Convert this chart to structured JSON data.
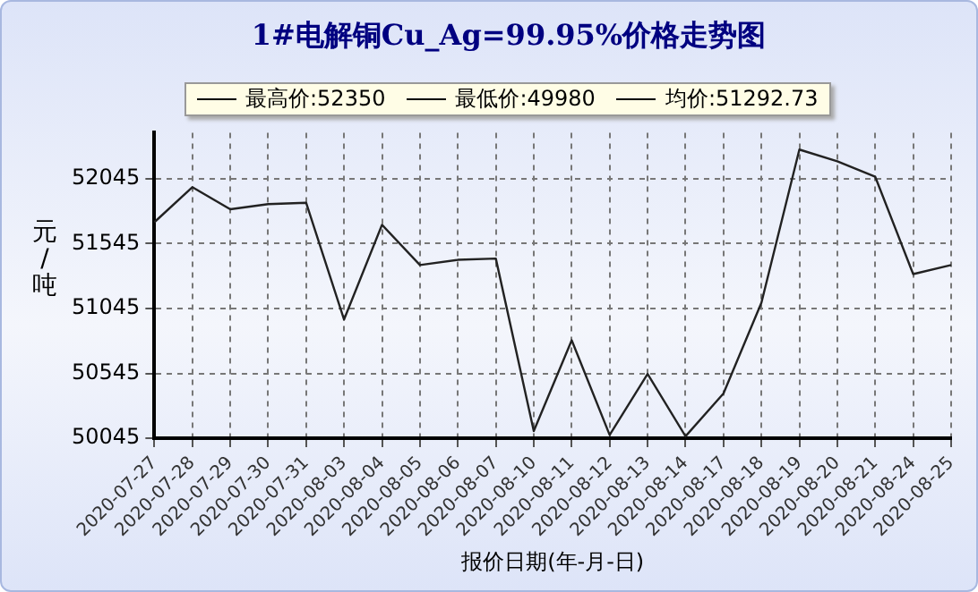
{
  "chart_data": {
    "type": "line",
    "title": "1#电解铜Cu_Ag=99.95%价格走势图",
    "xlabel": "报价日期(年-月-日)",
    "ylabel": "元/吨",
    "annotations": [
      "最高价:52350",
      "最低价:49980",
      "均价:51292.73"
    ],
    "categories": [
      "2020-07-27",
      "2020-07-28",
      "2020-07-29",
      "2020-07-30",
      "2020-07-31",
      "2020-08-03",
      "2020-08-04",
      "2020-08-05",
      "2020-08-06",
      "2020-08-07",
      "2020-08-10",
      "2020-08-11",
      "2020-08-12",
      "2020-08-13",
      "2020-08-14",
      "2020-08-17",
      "2020-08-18",
      "2020-08-19",
      "2020-08-20",
      "2020-08-21",
      "2020-08-24",
      "2020-08-25"
    ],
    "series": [
      {
        "color": "#222222",
        "values": [
          51710,
          51980,
          51810,
          51850,
          51860,
          50960,
          51690,
          51380,
          51420,
          51430,
          50100,
          50800,
          50070,
          50540,
          50060,
          50390,
          51090,
          52270,
          52180,
          52060,
          51310,
          51380
        ]
      }
    ],
    "ylim": [
      50045,
      52400
    ],
    "yticks": [
      50045,
      50545,
      51045,
      51545,
      52045
    ],
    "grid": true,
    "marker": "none",
    "line_style": "solid"
  }
}
